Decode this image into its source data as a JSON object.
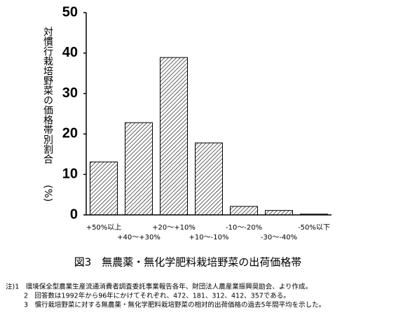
{
  "chart_data": {
    "type": "bar",
    "title": "図3　無農薬・無化学肥料栽培野菜の出荷価格帯",
    "y_label": "対慣行栽培野菜の価格帯別割合",
    "y_unit": "(%)",
    "categories": [
      "+50%以上",
      "+40～+30%",
      "+20～+10%",
      "+10～-10%",
      "-10～-20%",
      "-30～-40%",
      "-50%以下"
    ],
    "values": [
      13.1,
      22.8,
      38.9,
      17.8,
      2.1,
      1.1,
      0.2
    ],
    "color": "#000000",
    "ylim": [
      0,
      50
    ],
    "yticks": [
      0,
      10,
      20,
      30,
      40,
      50
    ],
    "notes": [
      "注)1　環境保全型農業生産流通消費者調査委託事業報告各年、財団法人農産業振興奨励会、より作成。",
      "2　回答数は1992年から96年にかけてそれぞれ、472、181、312、412、357である。",
      "3　慣行栽培野菜に対する無農薬・無化学肥料栽培野菜の相対的出荷価格の過去5年間平均を示した。"
    ]
  }
}
